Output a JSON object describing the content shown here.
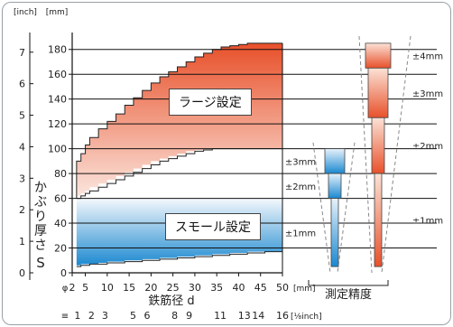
{
  "chart_data": {
    "type": "area",
    "title": "",
    "xlabel": "鉄筋径 d",
    "ylabel": "かぶり厚さ S",
    "x_unit": "[mm]",
    "y_unit_left": "[inch]",
    "y_unit_right": "[mm]",
    "x_axis": {
      "prefix": "φ",
      "ticks": [
        2,
        5,
        10,
        15,
        20,
        25,
        30,
        35,
        40,
        45,
        50
      ],
      "xlim": [
        2,
        50
      ]
    },
    "x_secondary": {
      "prefix": "≡",
      "ticks": [
        {
          "label": "1",
          "at": 3.2
        },
        {
          "label": "2",
          "at": 6.4
        },
        {
          "label": "3",
          "at": 9.5
        },
        {
          "label": "5",
          "at": 15.9
        },
        {
          "label": "6",
          "at": 19.1
        },
        {
          "label": "8",
          "at": 25.4
        },
        {
          "label": "9",
          "at": 28.7
        },
        {
          "label": "11",
          "at": 35.8
        },
        {
          "label": "13",
          "at": 41.3
        },
        {
          "label": "14",
          "at": 44.5
        },
        {
          "label": "16",
          "at": 50
        }
      ],
      "unit": "[⅛inch]"
    },
    "y_axis": {
      "ticks": [
        0,
        20,
        40,
        60,
        80,
        100,
        120,
        140,
        160,
        180
      ],
      "ylim": [
        0,
        190
      ]
    },
    "y_axis_inch": {
      "ticks": [
        0,
        1,
        2,
        3,
        4,
        5,
        6,
        7
      ]
    },
    "series": [
      {
        "name": "ラージ設定",
        "color_top": "#e8502a",
        "color_bottom": "#fbe7df",
        "upper": [
          [
            3,
            60
          ],
          [
            3,
            90
          ],
          [
            4,
            96
          ],
          [
            5,
            103
          ],
          [
            6,
            109
          ],
          [
            8,
            116
          ],
          [
            10,
            122
          ],
          [
            12,
            128
          ],
          [
            14,
            135
          ],
          [
            16,
            141
          ],
          [
            18,
            147
          ],
          [
            20,
            153
          ],
          [
            22,
            158
          ],
          [
            24,
            162
          ],
          [
            26,
            166
          ],
          [
            28,
            170
          ],
          [
            30,
            174
          ],
          [
            32,
            177
          ],
          [
            34,
            180
          ],
          [
            36,
            182
          ],
          [
            38,
            183
          ],
          [
            40,
            184
          ],
          [
            42,
            185
          ],
          [
            44,
            185
          ],
          [
            45,
            185
          ],
          [
            50,
            185
          ]
        ],
        "lower": [
          [
            3,
            60
          ],
          [
            4,
            62
          ],
          [
            5,
            64
          ],
          [
            6,
            66
          ],
          [
            8,
            69
          ],
          [
            10,
            72
          ],
          [
            12,
            75
          ],
          [
            14,
            78
          ],
          [
            16,
            81
          ],
          [
            18,
            84
          ],
          [
            20,
            87
          ],
          [
            22,
            90
          ],
          [
            24,
            92
          ],
          [
            26,
            94
          ],
          [
            28,
            96
          ],
          [
            30,
            98
          ],
          [
            32,
            99
          ],
          [
            34,
            100
          ],
          [
            50,
            100
          ]
        ]
      },
      {
        "name": "スモール設定",
        "color_top": "#f4f8fc",
        "color_bottom": "#1a88d0",
        "upper": [
          [
            3,
            60
          ],
          [
            50,
            60
          ]
        ],
        "lower": [
          [
            3,
            5
          ],
          [
            4,
            6
          ],
          [
            6,
            7
          ],
          [
            8,
            7
          ],
          [
            10,
            8
          ],
          [
            14,
            9
          ],
          [
            18,
            10
          ],
          [
            22,
            11
          ],
          [
            26,
            12
          ],
          [
            30,
            13
          ],
          [
            34,
            14
          ],
          [
            38,
            15
          ],
          [
            42,
            16
          ],
          [
            46,
            17
          ],
          [
            50,
            17
          ]
        ]
      }
    ],
    "labels": {
      "large": "ラージ設定",
      "small": "スモール設定",
      "accuracy": "測定精度"
    },
    "accuracy": {
      "large": [
        {
          "label": "±4mm",
          "y0": 165,
          "y1": 185
        },
        {
          "label": "±3mm",
          "y0": 125,
          "y1": 165
        },
        {
          "label": "±2mm",
          "y0": 80,
          "y1": 125
        },
        {
          "label": "±1mm",
          "y0": 5,
          "y1": 80
        }
      ],
      "small": [
        {
          "label": "±3mm",
          "y0": 80,
          "y1": 100
        },
        {
          "label": "±2mm",
          "y0": 60,
          "y1": 80
        },
        {
          "label": "±1mm",
          "y0": 5,
          "y1": 60
        }
      ]
    },
    "grid": true
  },
  "colors": {
    "large_top": "#e8502a",
    "large_bottom": "#fbe7df",
    "small_top": "#f4f8fc",
    "small_bottom": "#1a88d0",
    "axis": "#222222"
  }
}
